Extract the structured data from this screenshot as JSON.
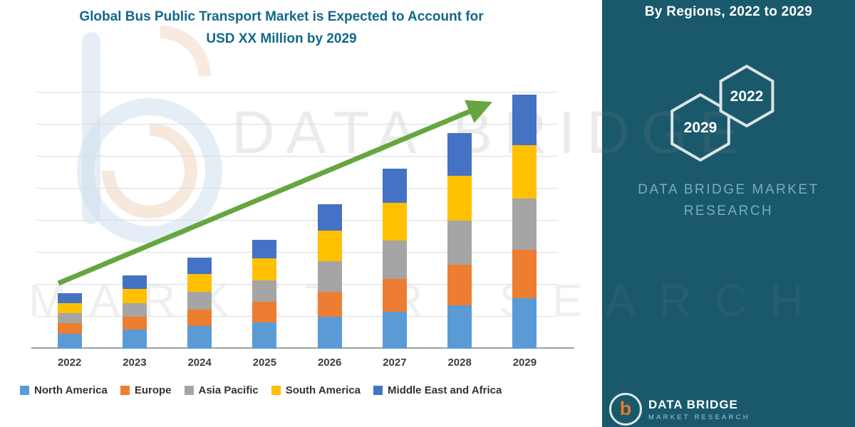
{
  "title": {
    "line1": "Global Bus Public Transport Market is Expected to Account for",
    "line2": "USD XX Million by 2029"
  },
  "sidebar": {
    "heading": "By Regions, 2022 to 2029",
    "hexagons": [
      "2029",
      "2022"
    ],
    "brand_line1": "DATA BRIDGE MARKET",
    "brand_line2": "RESEARCH"
  },
  "watermark": {
    "line1": "DATA BRIDGE",
    "line2": "MARKET RESEARCH"
  },
  "footer": {
    "brand": "DATA BRIDGE",
    "sub": "MARKET RESEARCH"
  },
  "colors": {
    "panel": "#19596B",
    "title_text": "#12688A",
    "trend_arrow": "#66A63F"
  },
  "chart_data": {
    "type": "bar",
    "stacked": true,
    "title": "Global Bus Public Transport Market is Expected to Account for USD XX Million by 2029",
    "categories": [
      "2022",
      "2023",
      "2024",
      "2025",
      "2026",
      "2027",
      "2028",
      "2029"
    ],
    "series": [
      {
        "name": "North America",
        "color": "#5B9BD5",
        "values": [
          6,
          7.5,
          9,
          10.5,
          12.5,
          14.5,
          17,
          20
        ]
      },
      {
        "name": "Europe",
        "color": "#ED7D31",
        "values": [
          4,
          5,
          6.5,
          8,
          10,
          13,
          16,
          19
        ]
      },
      {
        "name": "Asia Pacific",
        "color": "#A5A5A5",
        "values": [
          4,
          5.5,
          7,
          8.5,
          12,
          15,
          17.5,
          20
        ]
      },
      {
        "name": "South America",
        "color": "#FFC000",
        "values": [
          4,
          5.5,
          7,
          8.5,
          12,
          15,
          17.5,
          21
        ]
      },
      {
        "name": "Middle East and Africa",
        "color": "#4472C4",
        "values": [
          4,
          5.5,
          6.5,
          7.5,
          10.5,
          13.5,
          17,
          20
        ]
      }
    ],
    "value_units": "relative (y-axis unlabeled, values USD XX Million)",
    "ylim": [
      0,
      100
    ],
    "grid": true,
    "legend_position": "bottom",
    "annotations": [
      "green upward trend arrow from 2022 to 2029"
    ]
  }
}
